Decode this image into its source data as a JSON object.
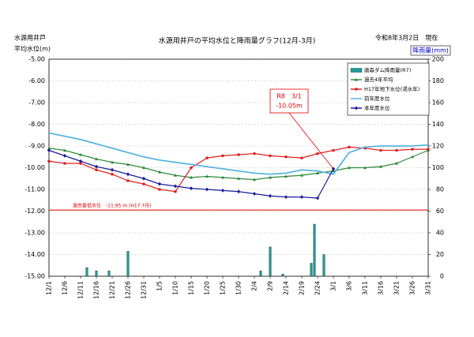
{
  "chart_data": {
    "type": "line",
    "title": "水源用井戸の平均水位と降雨量グラフ(12月-3月)",
    "date_note": "令和8年3月2日　現在",
    "ylabel_lines": [
      "水源用井戸",
      "平均水位(m)"
    ],
    "y2label": "降雨量(mm)",
    "xlim": [
      0,
      120
    ],
    "xticks": [
      {
        "value": 0,
        "label": "12/1"
      },
      {
        "value": 5,
        "label": "12/6"
      },
      {
        "value": 10,
        "label": "12/11"
      },
      {
        "value": 15,
        "label": "12/16"
      },
      {
        "value": 20,
        "label": "12/21"
      },
      {
        "value": 25,
        "label": "12/26"
      },
      {
        "value": 30,
        "label": "12/31"
      },
      {
        "value": 35,
        "label": "1/5"
      },
      {
        "value": 40,
        "label": "1/10"
      },
      {
        "value": 45,
        "label": "1/15"
      },
      {
        "value": 50,
        "label": "1/20"
      },
      {
        "value": 55,
        "label": "1/25"
      },
      {
        "value": 60,
        "label": "1/30"
      },
      {
        "value": 65,
        "label": "2/4"
      },
      {
        "value": 70,
        "label": "2/9"
      },
      {
        "value": 75,
        "label": "2/14"
      },
      {
        "value": 80,
        "label": "2/19"
      },
      {
        "value": 85,
        "label": "2/24"
      },
      {
        "value": 90,
        "label": "3/1"
      },
      {
        "value": 95,
        "label": "3/6"
      },
      {
        "value": 100,
        "label": "3/11"
      },
      {
        "value": 105,
        "label": "3/16"
      },
      {
        "value": 110,
        "label": "3/21"
      },
      {
        "value": 115,
        "label": "3/26"
      },
      {
        "value": 120,
        "label": "3/31"
      }
    ],
    "ylim": [
      -15,
      -5
    ],
    "yticks": [
      {
        "value": -15,
        "label": "-15.00"
      },
      {
        "value": -14,
        "label": "-14.00"
      },
      {
        "value": -13,
        "label": "-13.00"
      },
      {
        "value": -12,
        "label": "-12.00"
      },
      {
        "value": -11,
        "label": "-11.00"
      },
      {
        "value": -10,
        "label": "-10.00"
      },
      {
        "value": -9,
        "label": "-9.00"
      },
      {
        "value": -8,
        "label": "-8.00"
      },
      {
        "value": -7,
        "label": "-7.00"
      },
      {
        "value": -6,
        "label": "-6.00"
      },
      {
        "value": -5,
        "label": "-5.00"
      }
    ],
    "y2lim": [
      0,
      200
    ],
    "y2ticks": [
      0,
      20,
      40,
      60,
      80,
      100,
      120,
      140,
      160,
      180,
      200
    ],
    "x": [
      0,
      5,
      10,
      15,
      20,
      25,
      30,
      35,
      40,
      45,
      50,
      55,
      60,
      65,
      70,
      75,
      80,
      85,
      90,
      95,
      100,
      105,
      110,
      115,
      120
    ],
    "series": [
      {
        "name": "唐森ダム降雨量(R7)",
        "type": "bar",
        "axis": "y2",
        "color": "#1f9a96",
        "x": [
          12,
          15,
          19,
          25,
          67,
          70,
          74,
          83,
          84,
          87
        ],
        "values": [
          8,
          5,
          5,
          23,
          5,
          27,
          2,
          12,
          48,
          20
        ]
      },
      {
        "name": "過去4年平均",
        "color": "#2e8b3a",
        "marker": "triangle",
        "values": [
          -9.1,
          -9.2,
          -9.4,
          -9.6,
          -9.75,
          -9.85,
          -10.0,
          -10.2,
          -10.35,
          -10.45,
          -10.4,
          -10.45,
          -10.5,
          -10.55,
          -10.45,
          -10.4,
          -10.35,
          -10.25,
          -10.15,
          -10.0,
          -10.0,
          -9.95,
          -9.8,
          -9.5,
          -9.2
        ]
      },
      {
        "name": "H17年地下水位(渇水年)",
        "color": "#e02020",
        "marker": "circle",
        "values": [
          -9.7,
          -9.8,
          -9.8,
          -10.1,
          -10.3,
          -10.6,
          -10.75,
          -11.0,
          -11.1,
          -10.0,
          -9.55,
          -9.45,
          -9.4,
          -9.35,
          -9.45,
          -9.5,
          -9.55,
          -9.35,
          -9.2,
          -9.05,
          -9.1,
          -9.2,
          -9.2,
          -9.15,
          -9.15
        ]
      },
      {
        "name": "前年度水位",
        "color": "#5ab4e0",
        "marker": "none",
        "values": [
          -8.4,
          -8.55,
          -8.7,
          -8.9,
          -9.1,
          -9.3,
          -9.5,
          -9.65,
          -9.75,
          -9.85,
          -9.95,
          -10.05,
          -10.15,
          -10.25,
          -10.3,
          -10.25,
          -10.1,
          -10.15,
          -10.3,
          -9.3,
          -9.05,
          -9.0,
          -9.0,
          -9.0,
          -8.95
        ]
      },
      {
        "name": "本年度水位",
        "color": "#1a1a9a",
        "marker": "diamond",
        "values": [
          -9.2,
          -9.45,
          -9.7,
          -9.95,
          -10.1,
          -10.3,
          -10.5,
          -10.75,
          -10.85,
          -10.95,
          -11.0,
          -11.05,
          -11.1,
          -11.2,
          -11.3,
          -11.35,
          -11.35,
          -11.4,
          -10.05,
          null,
          null,
          null,
          null,
          null,
          null
        ]
      }
    ],
    "reference_line": {
      "value": -11.95,
      "label": "過去最低水位　-11.95 m (H17.7月)",
      "color": "#e00000"
    },
    "annotation": [
      "R8　3/1",
      "-10.05m"
    ],
    "grid": true
  }
}
